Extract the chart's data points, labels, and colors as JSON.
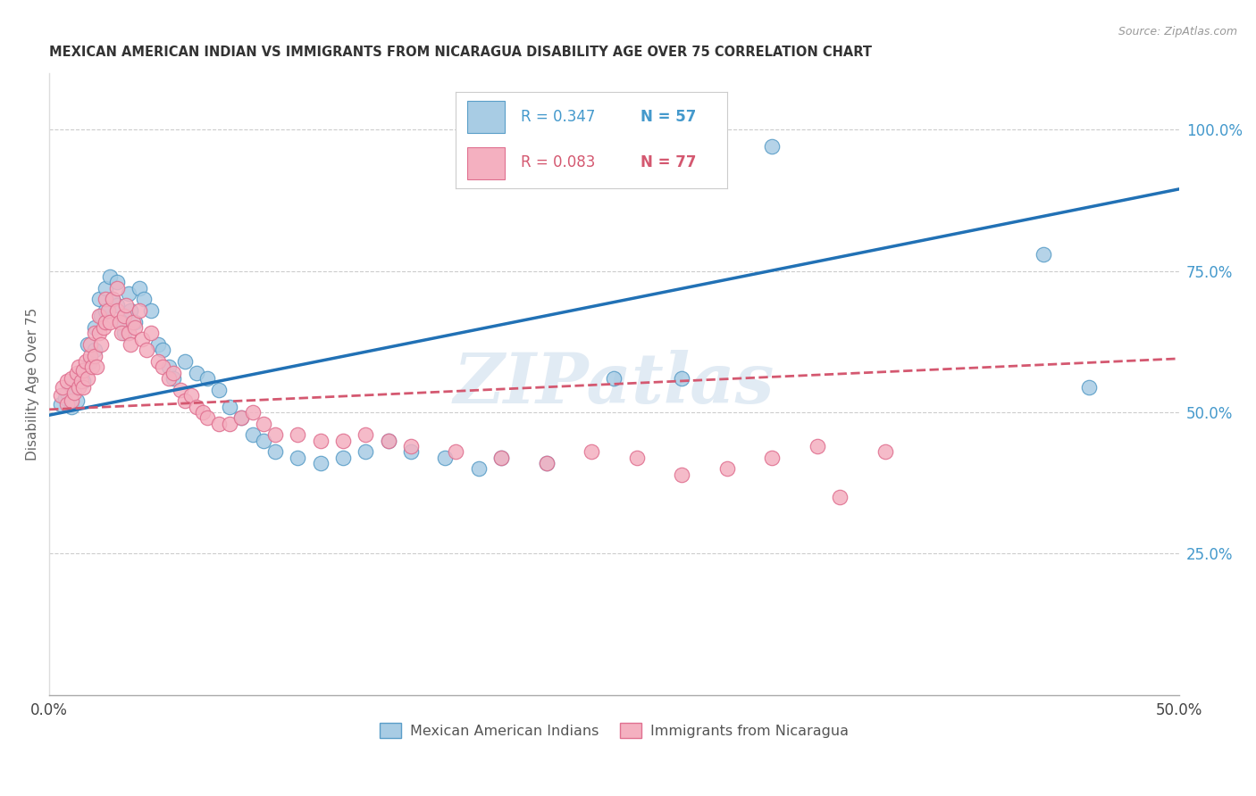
{
  "title": "MEXICAN AMERICAN INDIAN VS IMMIGRANTS FROM NICARAGUA DISABILITY AGE OVER 75 CORRELATION CHART",
  "source": "Source: ZipAtlas.com",
  "ylabel": "Disability Age Over 75",
  "x_min": 0.0,
  "x_max": 0.5,
  "y_min": 0.0,
  "y_max": 1.1,
  "y_ticks_right": [
    0.25,
    0.5,
    0.75,
    1.0
  ],
  "y_tick_labels_right": [
    "25.0%",
    "50.0%",
    "75.0%",
    "100.0%"
  ],
  "legend_R1": "0.347",
  "legend_N1": "57",
  "legend_R2": "0.083",
  "legend_N2": "77",
  "legend_label1": "Mexican American Indians",
  "legend_label2": "Immigrants from Nicaragua",
  "watermark": "ZIPatlas",
  "blue_color": "#a8cce4",
  "blue_edge_color": "#5a9ec8",
  "blue_line_color": "#2171b5",
  "pink_color": "#f4b0c0",
  "pink_edge_color": "#e07090",
  "pink_line_color": "#d45870",
  "background_color": "#ffffff",
  "grid_color": "#cccccc",
  "title_color": "#333333",
  "right_axis_color": "#4499cc",
  "blue_scatter_x": [
    0.005,
    0.007,
    0.008,
    0.01,
    0.01,
    0.012,
    0.012,
    0.015,
    0.015,
    0.017,
    0.018,
    0.02,
    0.02,
    0.022,
    0.023,
    0.025,
    0.025,
    0.027,
    0.028,
    0.03,
    0.03,
    0.032,
    0.033,
    0.035,
    0.036,
    0.038,
    0.04,
    0.042,
    0.045,
    0.048,
    0.05,
    0.053,
    0.055,
    0.06,
    0.065,
    0.07,
    0.075,
    0.08,
    0.085,
    0.09,
    0.095,
    0.1,
    0.11,
    0.12,
    0.13,
    0.14,
    0.15,
    0.16,
    0.175,
    0.19,
    0.2,
    0.22,
    0.25,
    0.28,
    0.32,
    0.44,
    0.46
  ],
  "blue_scatter_y": [
    0.515,
    0.525,
    0.535,
    0.51,
    0.545,
    0.56,
    0.52,
    0.575,
    0.555,
    0.62,
    0.59,
    0.65,
    0.61,
    0.7,
    0.67,
    0.72,
    0.68,
    0.74,
    0.7,
    0.73,
    0.69,
    0.66,
    0.64,
    0.71,
    0.68,
    0.66,
    0.72,
    0.7,
    0.68,
    0.62,
    0.61,
    0.58,
    0.56,
    0.59,
    0.57,
    0.56,
    0.54,
    0.51,
    0.49,
    0.46,
    0.45,
    0.43,
    0.42,
    0.41,
    0.42,
    0.43,
    0.45,
    0.43,
    0.42,
    0.4,
    0.42,
    0.41,
    0.56,
    0.56,
    0.97,
    0.78,
    0.545
  ],
  "pink_scatter_x": [
    0.005,
    0.006,
    0.008,
    0.008,
    0.01,
    0.01,
    0.011,
    0.012,
    0.013,
    0.013,
    0.014,
    0.015,
    0.015,
    0.016,
    0.017,
    0.018,
    0.018,
    0.019,
    0.02,
    0.02,
    0.021,
    0.022,
    0.022,
    0.023,
    0.024,
    0.025,
    0.025,
    0.026,
    0.027,
    0.028,
    0.03,
    0.03,
    0.031,
    0.032,
    0.033,
    0.034,
    0.035,
    0.036,
    0.037,
    0.038,
    0.04,
    0.041,
    0.043,
    0.045,
    0.048,
    0.05,
    0.053,
    0.055,
    0.058,
    0.06,
    0.063,
    0.065,
    0.068,
    0.07,
    0.075,
    0.08,
    0.085,
    0.09,
    0.095,
    0.1,
    0.11,
    0.12,
    0.13,
    0.14,
    0.15,
    0.16,
    0.18,
    0.2,
    0.22,
    0.24,
    0.26,
    0.28,
    0.3,
    0.32,
    0.34,
    0.35,
    0.37
  ],
  "pink_scatter_y": [
    0.53,
    0.545,
    0.515,
    0.555,
    0.52,
    0.56,
    0.535,
    0.57,
    0.545,
    0.58,
    0.555,
    0.575,
    0.545,
    0.59,
    0.56,
    0.6,
    0.62,
    0.58,
    0.64,
    0.6,
    0.58,
    0.67,
    0.64,
    0.62,
    0.65,
    0.66,
    0.7,
    0.68,
    0.66,
    0.7,
    0.72,
    0.68,
    0.66,
    0.64,
    0.67,
    0.69,
    0.64,
    0.62,
    0.66,
    0.65,
    0.68,
    0.63,
    0.61,
    0.64,
    0.59,
    0.58,
    0.56,
    0.57,
    0.54,
    0.52,
    0.53,
    0.51,
    0.5,
    0.49,
    0.48,
    0.48,
    0.49,
    0.5,
    0.48,
    0.46,
    0.46,
    0.45,
    0.45,
    0.46,
    0.45,
    0.44,
    0.43,
    0.42,
    0.41,
    0.43,
    0.42,
    0.39,
    0.4,
    0.42,
    0.44,
    0.35,
    0.43
  ]
}
